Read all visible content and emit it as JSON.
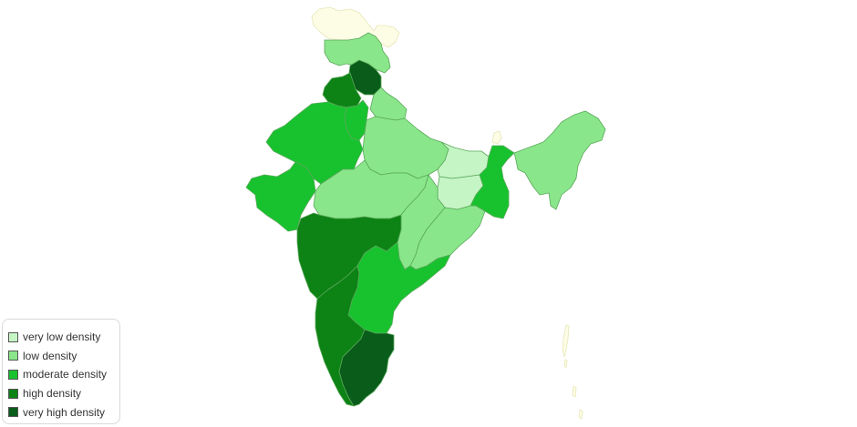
{
  "legend": {
    "items": [
      {
        "key": "very_low",
        "label": "very low density",
        "color": "#c5f5c5"
      },
      {
        "key": "low",
        "label": "low density",
        "color": "#8ae68a"
      },
      {
        "key": "moderate",
        "label": "moderate density",
        "color": "#17c22e"
      },
      {
        "key": "high",
        "label": "high density",
        "color": "#0d8215"
      },
      {
        "key": "very_high",
        "label": "very high density",
        "color": "#0a5c1a"
      }
    ]
  },
  "no_data_color": "#fdfde6",
  "regions": [
    {
      "name": "Jammu and Kashmir (north)",
      "class": "none"
    },
    {
      "name": "Jammu and Kashmir",
      "class": "low"
    },
    {
      "name": "Himachal Pradesh",
      "class": "very_high"
    },
    {
      "name": "Punjab",
      "class": "high"
    },
    {
      "name": "Haryana",
      "class": "moderate"
    },
    {
      "name": "Uttarakhand",
      "class": "low"
    },
    {
      "name": "Rajasthan",
      "class": "moderate"
    },
    {
      "name": "Uttar Pradesh",
      "class": "low"
    },
    {
      "name": "Bihar",
      "class": "very_low"
    },
    {
      "name": "Sikkim",
      "class": "none"
    },
    {
      "name": "Gujarat",
      "class": "moderate"
    },
    {
      "name": "Madhya Pradesh",
      "class": "low"
    },
    {
      "name": "Jharkhand",
      "class": "very_low"
    },
    {
      "name": "West Bengal",
      "class": "moderate"
    },
    {
      "name": "Northeast",
      "class": "low"
    },
    {
      "name": "Chhattisgarh",
      "class": "low"
    },
    {
      "name": "Odisha",
      "class": "low"
    },
    {
      "name": "Maharashtra",
      "class": "high"
    },
    {
      "name": "Andhra Pradesh",
      "class": "moderate"
    },
    {
      "name": "Karnataka",
      "class": "high"
    },
    {
      "name": "Tamil Nadu",
      "class": "very_high"
    },
    {
      "name": "Andaman and Nicobar",
      "class": "none"
    }
  ]
}
